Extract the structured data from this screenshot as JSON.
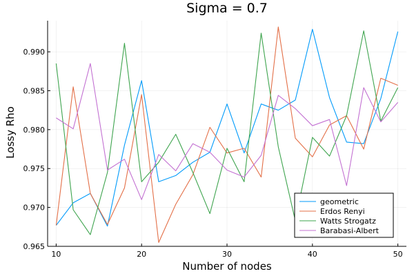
{
  "chart_data": {
    "type": "line",
    "title": "Sigma = 0.7",
    "xlabel": "Number of nodes",
    "ylabel": "Lossy Rho",
    "xlim": [
      9,
      51
    ],
    "ylim": [
      0.965,
      0.994
    ],
    "xticks": [
      10,
      20,
      30,
      40,
      50
    ],
    "yticks": [
      0.965,
      0.97,
      0.975,
      0.98,
      0.985,
      0.99
    ],
    "xtick_labels": [
      "10",
      "20",
      "30",
      "40",
      "50"
    ],
    "ytick_labels": [
      "0.965",
      "0.970",
      "0.975",
      "0.980",
      "0.985",
      "0.990"
    ],
    "grid": true,
    "legend_position": "bottom-right",
    "x": [
      10,
      12,
      14,
      16,
      18,
      20,
      22,
      24,
      26,
      28,
      30,
      32,
      34,
      36,
      38,
      40,
      42,
      44,
      46,
      48,
      50
    ],
    "series": [
      {
        "name": "geometric",
        "color": "#009AFA",
        "values": [
          0.9677,
          0.9706,
          0.9718,
          0.9676,
          0.978,
          0.9863,
          0.9733,
          0.9741,
          0.9758,
          0.9771,
          0.9833,
          0.977,
          0.9833,
          0.9825,
          0.9838,
          0.9929,
          0.9841,
          0.9784,
          0.9782,
          0.984,
          0.9926
        ]
      },
      {
        "name": "Erdos Renyi",
        "color": "#E36F47",
        "values": [
          0.9677,
          0.9855,
          0.9718,
          0.9678,
          0.9725,
          0.9845,
          0.9655,
          0.9704,
          0.9742,
          0.9803,
          0.977,
          0.9776,
          0.9739,
          0.9932,
          0.9789,
          0.9765,
          0.9806,
          0.9818,
          0.9775,
          0.9866,
          0.9857
        ]
      },
      {
        "name": "Watts Strogatz",
        "color": "#3EA44E",
        "values": [
          0.9885,
          0.9697,
          0.9665,
          0.9745,
          0.9911,
          0.9733,
          0.9758,
          0.9794,
          0.9745,
          0.9692,
          0.9776,
          0.9733,
          0.9924,
          0.9778,
          0.9683,
          0.979,
          0.9766,
          0.9818,
          0.9927,
          0.9811,
          0.9854
        ]
      },
      {
        "name": "Barabasi-Albert",
        "color": "#C371D2",
        "values": [
          0.9815,
          0.9801,
          0.9885,
          0.9748,
          0.9762,
          0.971,
          0.9768,
          0.9747,
          0.9782,
          0.9771,
          0.9748,
          0.9739,
          0.9767,
          0.9844,
          0.9827,
          0.9805,
          0.9813,
          0.9728,
          0.9854,
          0.981,
          0.9835
        ]
      }
    ]
  }
}
